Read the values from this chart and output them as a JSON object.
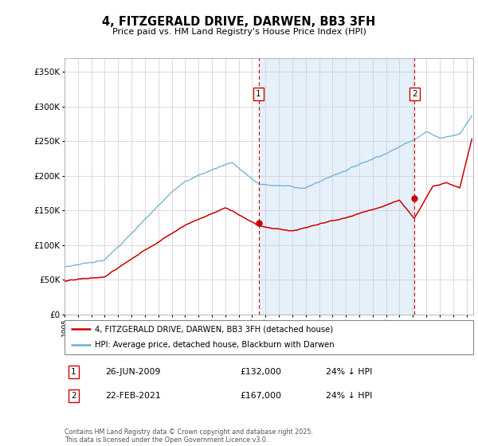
{
  "title": "4, FITZGERALD DRIVE, DARWEN, BB3 3FH",
  "subtitle": "Price paid vs. HM Land Registry's House Price Index (HPI)",
  "ylabel_ticks": [
    "£0",
    "£50K",
    "£100K",
    "£150K",
    "£200K",
    "£250K",
    "£300K",
    "£350K"
  ],
  "ylim": [
    0,
    370000
  ],
  "xlim_start": 1995,
  "xlim_end": 2025.5,
  "hpi_color": "#6baed6",
  "price_color": "#cc0000",
  "vline1_x": 2009.48,
  "vline2_x": 2021.13,
  "vline_color": "#cc0000",
  "vspan_color": "#ddeeff",
  "marker1_label": "1",
  "marker1_date": "26-JUN-2009",
  "marker1_price": "£132,000",
  "marker1_pct": "24% ↓ HPI",
  "marker1_y": 132000,
  "marker2_label": "2",
  "marker2_date": "22-FEB-2021",
  "marker2_price": "£167,000",
  "marker2_pct": "24% ↓ HPI",
  "marker2_y": 167000,
  "legend1": "4, FITZGERALD DRIVE, DARWEN, BB3 3FH (detached house)",
  "legend2": "HPI: Average price, detached house, Blackburn with Darwen",
  "footnote": "Contains HM Land Registry data © Crown copyright and database right 2025.\nThis data is licensed under the Open Government Licence v3.0.",
  "bg_color": "#ffffff",
  "plot_bg": "#ffffff"
}
